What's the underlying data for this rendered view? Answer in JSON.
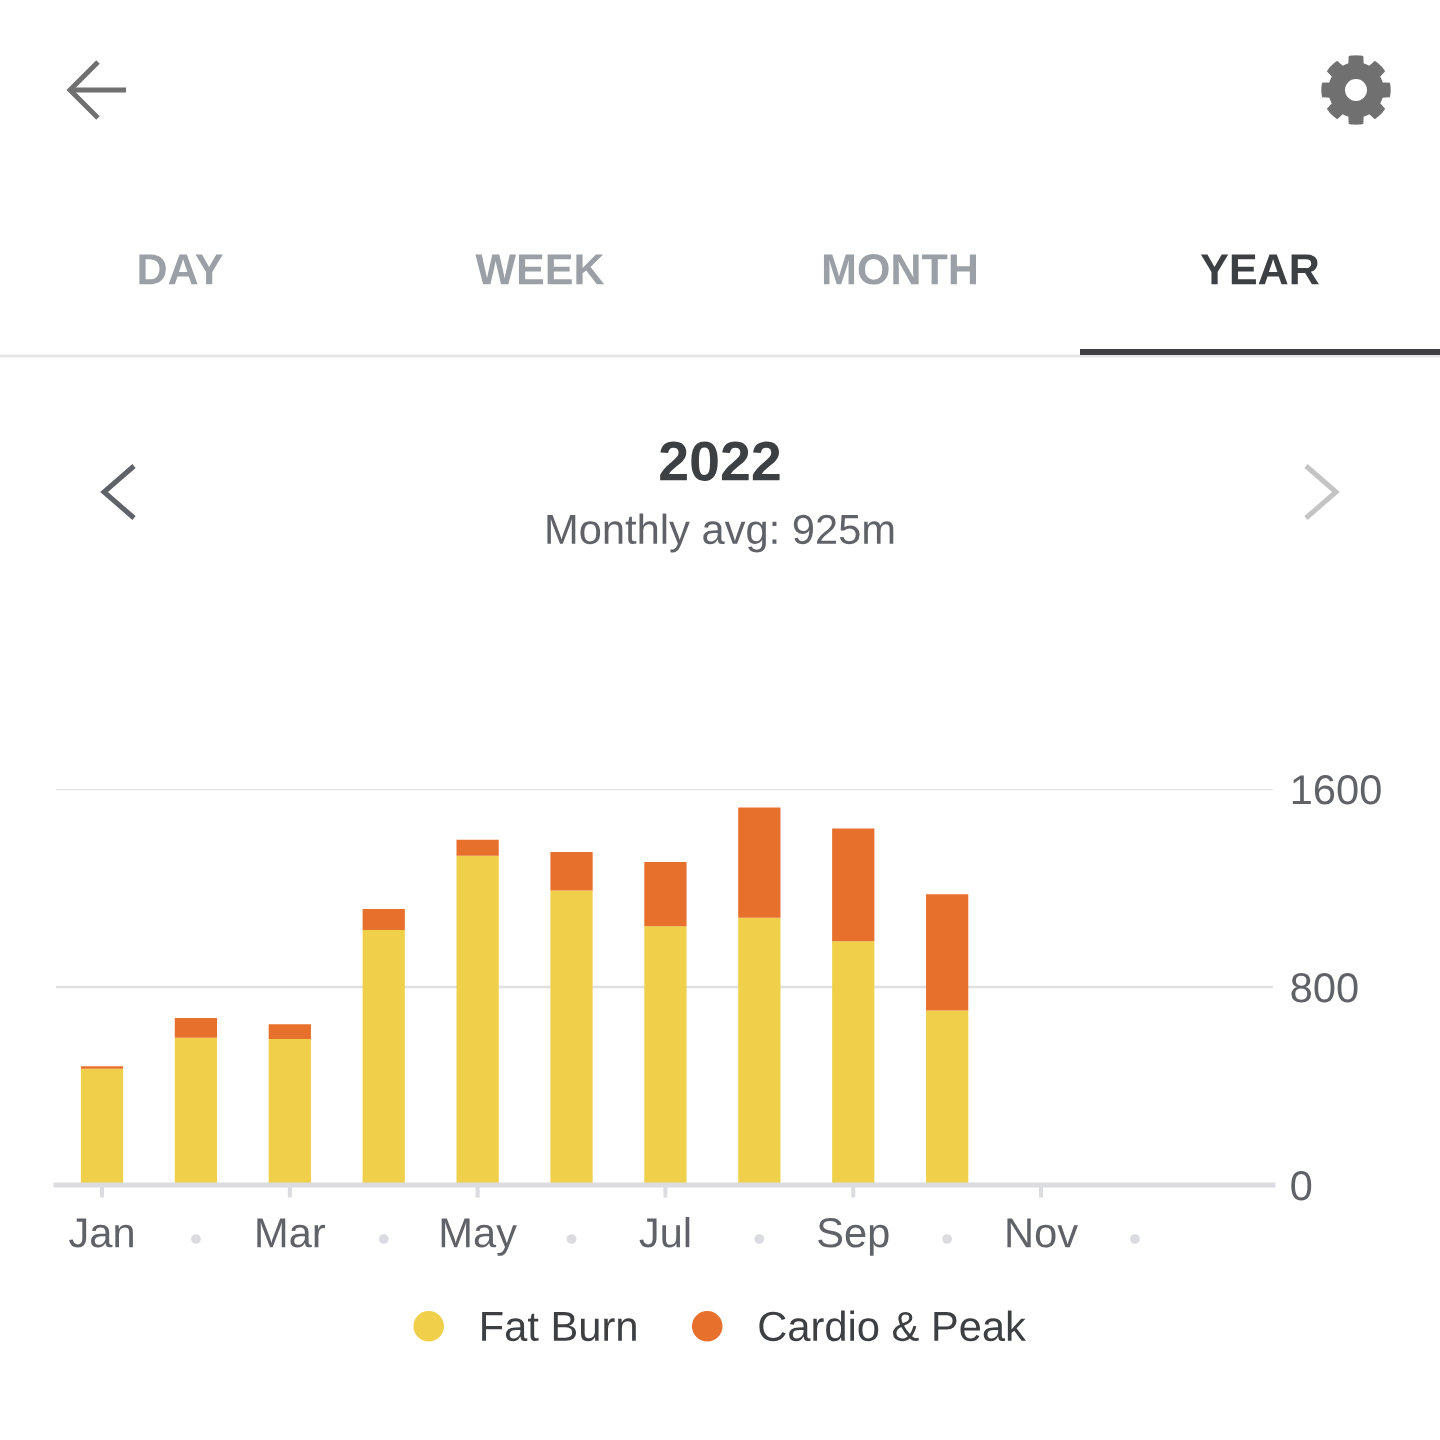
{
  "chart_data": {
    "type": "bar",
    "title": "2022",
    "subtitle": "Monthly avg: 925m",
    "annotations": [
      "DAY",
      "WEEK",
      "MONTH",
      "YEAR"
    ],
    "categories": [
      "Jan",
      null,
      "Mar",
      null,
      "May",
      null,
      "Jul",
      null,
      "Sep",
      null,
      "Nov",
      null
    ],
    "series": [
      {
        "name": "Fat Burn",
        "color": "#f0d04b",
        "values": [
          470,
          595,
          590,
          1030,
          1330,
          1190,
          1045,
          1080,
          985,
          705,
          null,
          null
        ]
      },
      {
        "name": "Cardio & Peak",
        "color": "#e8702d",
        "values": [
          10,
          80,
          60,
          85,
          65,
          155,
          260,
          445,
          455,
          470,
          null,
          null
        ]
      }
    ],
    "stacked": true,
    "ylim": [
      0,
      1600
    ],
    "yticks": [
      0,
      800,
      1600
    ],
    "grid": "y",
    "legend": "bottom"
  }
}
